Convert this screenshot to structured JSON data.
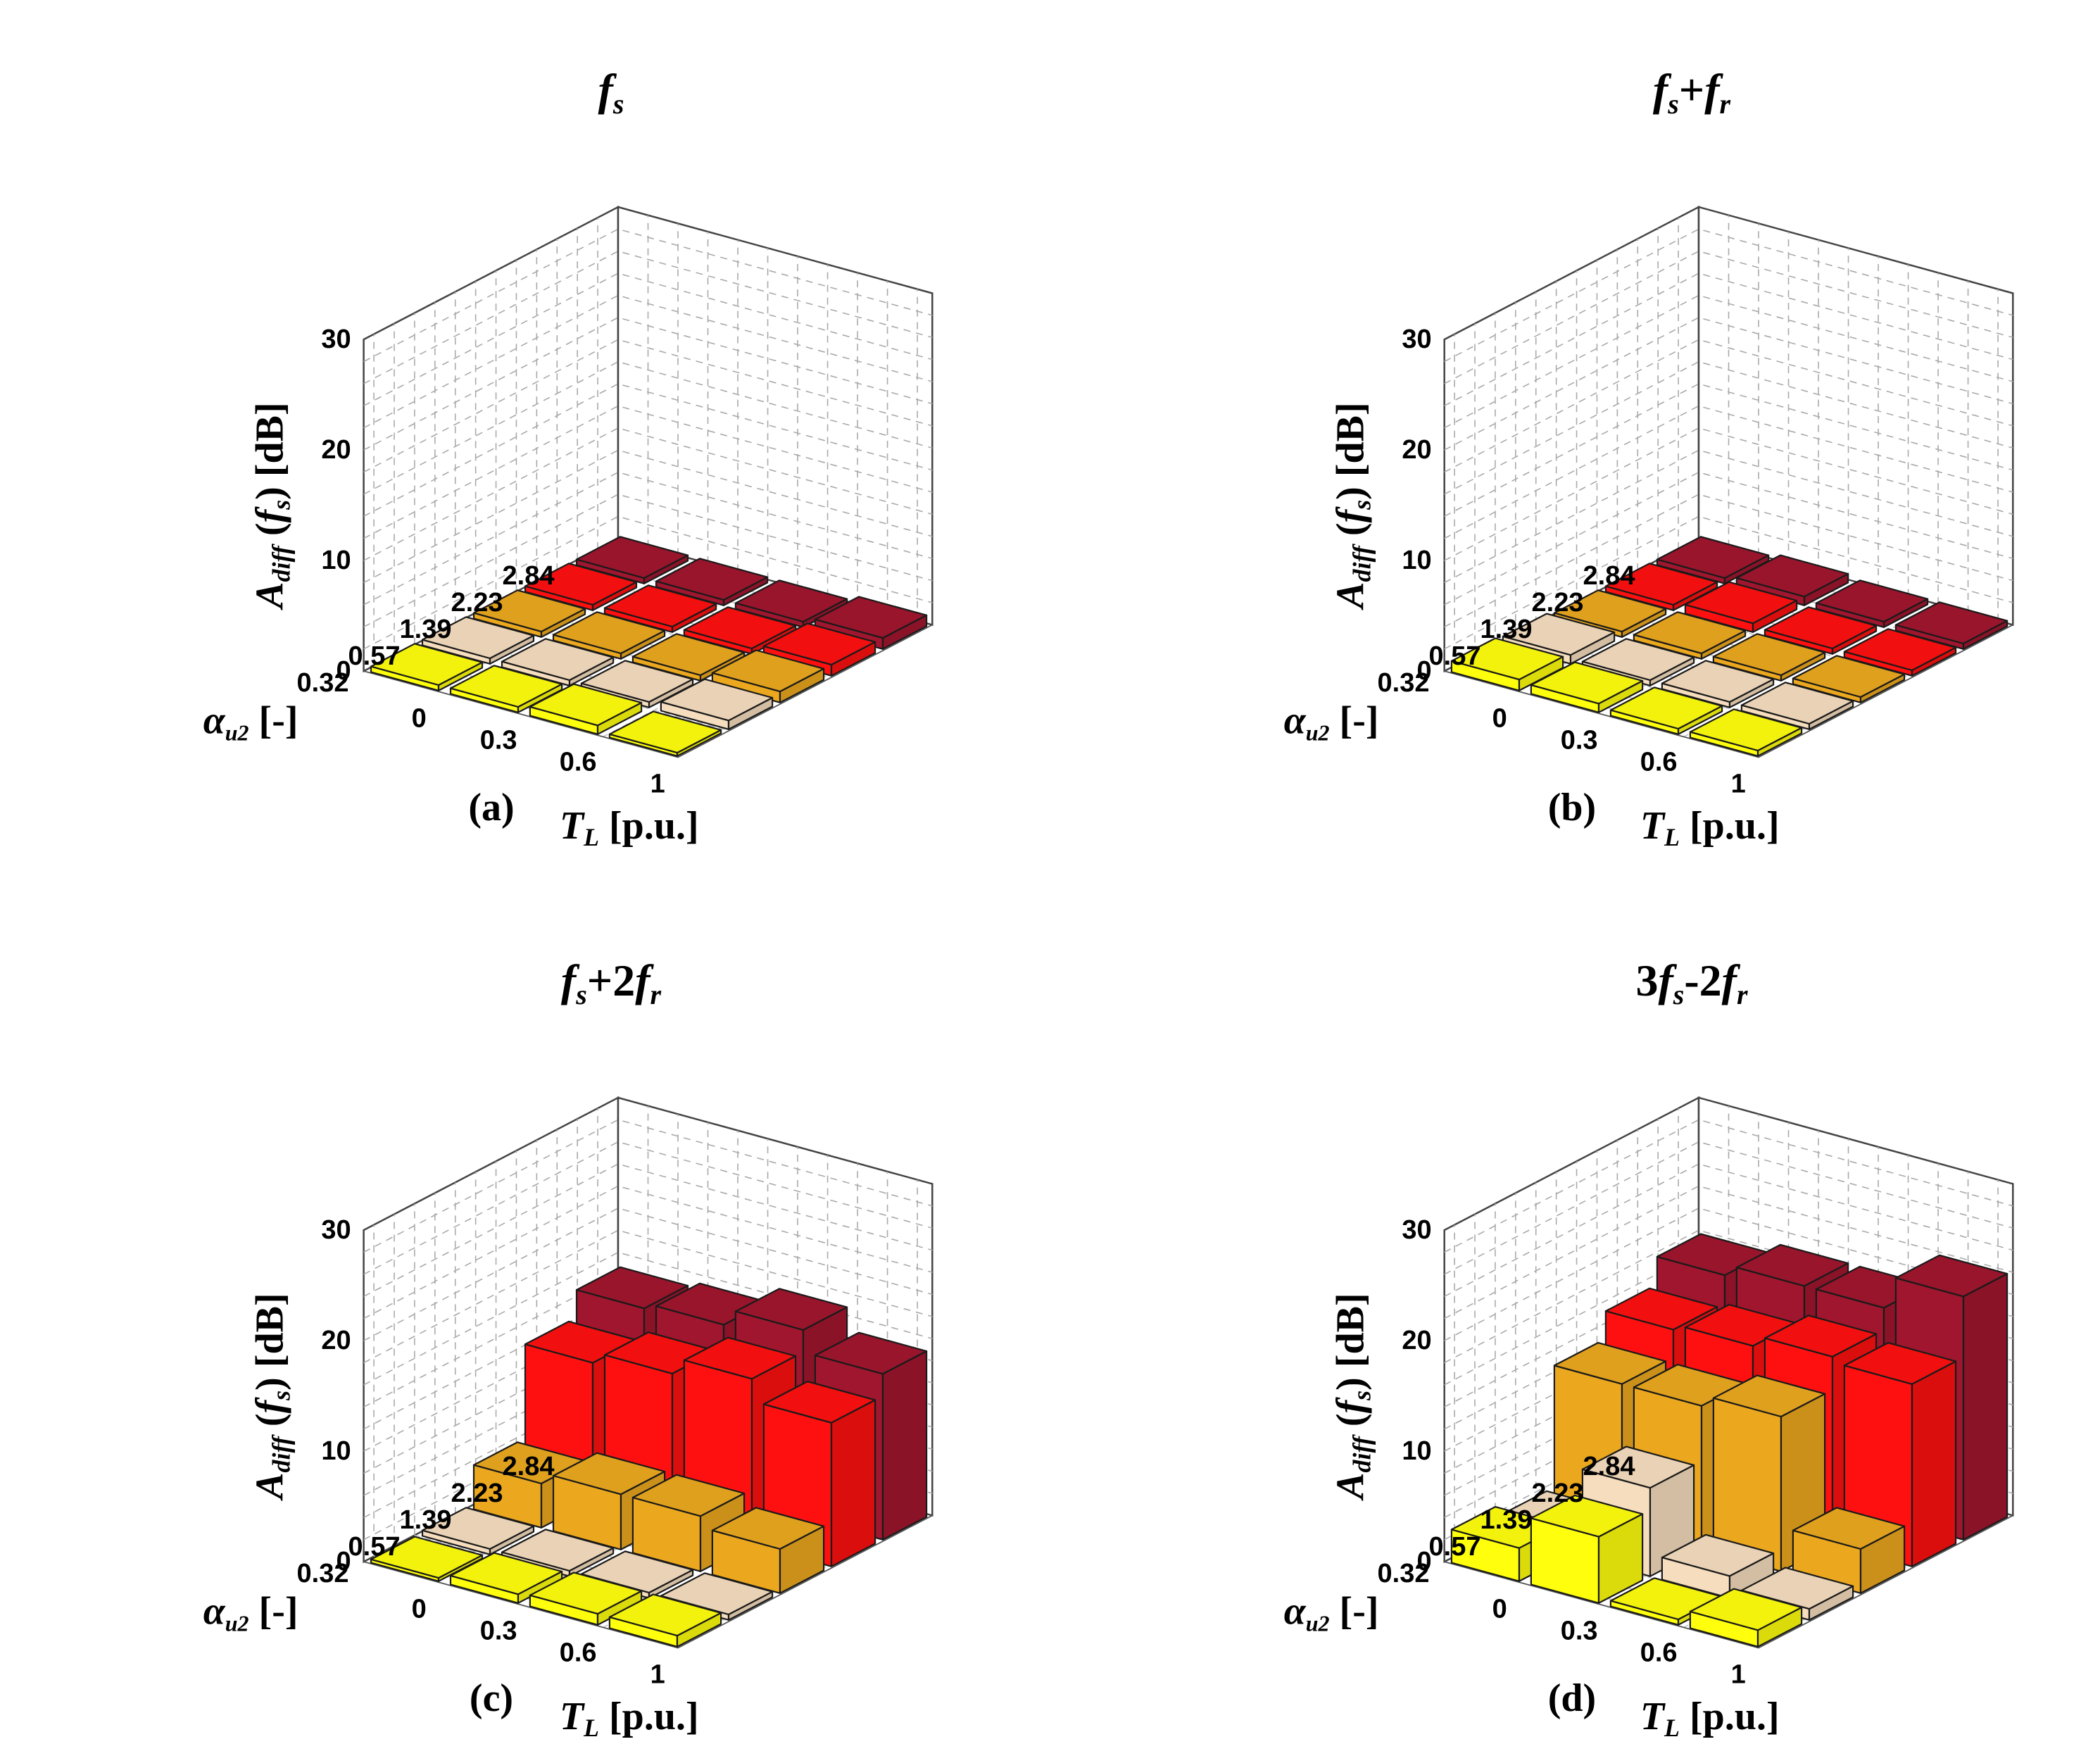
{
  "figure": {
    "y_axis_label": {
      "main": "A",
      "sub": "diff",
      "arg_open": " (",
      "arg": "f",
      "arg_sub": "s",
      "arg_close": ") [dB]"
    },
    "x_axis_label": {
      "main": "T",
      "sub": "L",
      "unit": " [p.u.]"
    },
    "depth_axis_label": {
      "main": "α",
      "sub": "u2",
      "unit": " [-]"
    },
    "colors_by_alpha": {
      "2.84": "#A0162E",
      "2.23": "#FF1010",
      "1.39": "#EBA81E",
      "0.57": "#F5DDBE",
      "0.32": "#FFFF0D"
    }
  },
  "chart_data": [
    {
      "panel_label": "(a)",
      "type": "bar3d",
      "title": {
        "parts": [
          {
            "t": "f"
          },
          {
            "t": "s",
            "sub": true
          }
        ]
      },
      "xlabel": "TL [p.u.]",
      "ylabel": "Adiff (fs) [dB]",
      "depth_label": "αu2 [-]",
      "x_categories": [
        "0",
        "0.3",
        "0.6",
        "1"
      ],
      "depth_categories": [
        "2.84",
        "2.23",
        "1.39",
        "0.57",
        "0.32"
      ],
      "zlim": [
        0,
        30
      ],
      "z_ticks": [
        "0",
        "10",
        "20",
        "30"
      ],
      "series": [
        {
          "name": "2.84",
          "values": [
            0.5,
            0.5,
            0.5,
            1.0
          ]
        },
        {
          "name": "2.23",
          "values": [
            0.5,
            0.5,
            0.5,
            1.0
          ]
        },
        {
          "name": "1.39",
          "values": [
            0.5,
            0.5,
            0.5,
            1.0
          ]
        },
        {
          "name": "0.57",
          "values": [
            0.5,
            0.5,
            0.5,
            0.8
          ]
        },
        {
          "name": "0.32",
          "values": [
            0.5,
            0.5,
            0.8,
            0.3
          ]
        }
      ]
    },
    {
      "panel_label": "(b)",
      "type": "bar3d",
      "title": {
        "parts": [
          {
            "t": "f"
          },
          {
            "t": "s",
            "sub": true
          },
          {
            "t": "+",
            "upright": true
          },
          {
            "t": "f"
          },
          {
            "t": "r",
            "sub": true
          }
        ]
      },
      "xlabel": "TL [p.u.]",
      "ylabel": "Adiff (fs) [dB]",
      "depth_label": "αu2 [-]",
      "x_categories": [
        "0",
        "0.3",
        "0.6",
        "1"
      ],
      "depth_categories": [
        "2.84",
        "2.23",
        "1.39",
        "0.57",
        "0.32"
      ],
      "zlim": [
        0,
        30
      ],
      "z_ticks": [
        "0",
        "10",
        "20",
        "30"
      ],
      "series": [
        {
          "name": "2.84",
          "values": [
            0.5,
            0.8,
            0.5,
            0.5
          ]
        },
        {
          "name": "2.23",
          "values": [
            0.5,
            0.8,
            0.5,
            0.5
          ]
        },
        {
          "name": "1.39",
          "values": [
            0.5,
            0.5,
            0.5,
            0.5
          ]
        },
        {
          "name": "0.57",
          "values": [
            0.8,
            0.5,
            0.5,
            0.5
          ]
        },
        {
          "name": "0.32",
          "values": [
            1.0,
            0.8,
            0.5,
            0.5
          ]
        }
      ]
    },
    {
      "panel_label": "(c)",
      "type": "bar3d",
      "title": {
        "parts": [
          {
            "t": "f"
          },
          {
            "t": "s",
            "sub": true
          },
          {
            "t": "+2",
            "upright": true
          },
          {
            "t": "f"
          },
          {
            "t": "r",
            "sub": true
          }
        ]
      },
      "xlabel": "TL [p.u.]",
      "ylabel": "Adiff (fs) [dB]",
      "depth_label": "αu2 [-]",
      "x_categories": [
        "0",
        "0.3",
        "0.6",
        "1"
      ],
      "depth_categories": [
        "2.84",
        "2.23",
        "1.39",
        "0.57",
        "0.32"
      ],
      "zlim": [
        0,
        30
      ],
      "z_ticks": [
        "0",
        "10",
        "20",
        "30"
      ],
      "series": [
        {
          "name": "2.84",
          "values": [
            15,
            15.5,
            17,
            15
          ]
        },
        {
          "name": "2.23",
          "values": [
            12.5,
            13.5,
            15,
            13
          ]
        },
        {
          "name": "1.39",
          "values": [
            4,
            5,
            5,
            4
          ]
        },
        {
          "name": "0.57",
          "values": [
            0.5,
            0.5,
            0.5,
            0.5
          ]
        },
        {
          "name": "0.32",
          "values": [
            0.3,
            0.8,
            1.0,
            1.0
          ]
        }
      ]
    },
    {
      "panel_label": "(d)",
      "type": "bar3d",
      "title": {
        "parts": [
          {
            "t": "3",
            "upright": true
          },
          {
            "t": "f"
          },
          {
            "t": "s",
            "sub": true
          },
          {
            "t": "-2",
            "upright": true
          },
          {
            "t": "f"
          },
          {
            "t": "r",
            "sub": true
          }
        ]
      },
      "xlabel": "TL [p.u.]",
      "ylabel": "Adiff (fs) [dB]",
      "depth_label": "αu2 [-]",
      "x_categories": [
        "0",
        "0.3",
        "0.6",
        "1"
      ],
      "depth_categories": [
        "2.84",
        "2.23",
        "1.39",
        "0.57",
        "0.32"
      ],
      "zlim": [
        0,
        30
      ],
      "z_ticks": [
        "0",
        "10",
        "20",
        "30"
      ],
      "series": [
        {
          "name": "2.84",
          "values": [
            18,
            19,
            19,
            22
          ]
        },
        {
          "name": "2.23",
          "values": [
            15.5,
            16,
            17,
            16.5
          ]
        },
        {
          "name": "1.39",
          "values": [
            13,
            13,
            14,
            4
          ]
        },
        {
          "name": "0.57",
          "values": [
            2,
            8,
            2,
            1
          ]
        },
        {
          "name": "0.32",
          "values": [
            3,
            6,
            0.5,
            1.5
          ]
        }
      ]
    }
  ]
}
